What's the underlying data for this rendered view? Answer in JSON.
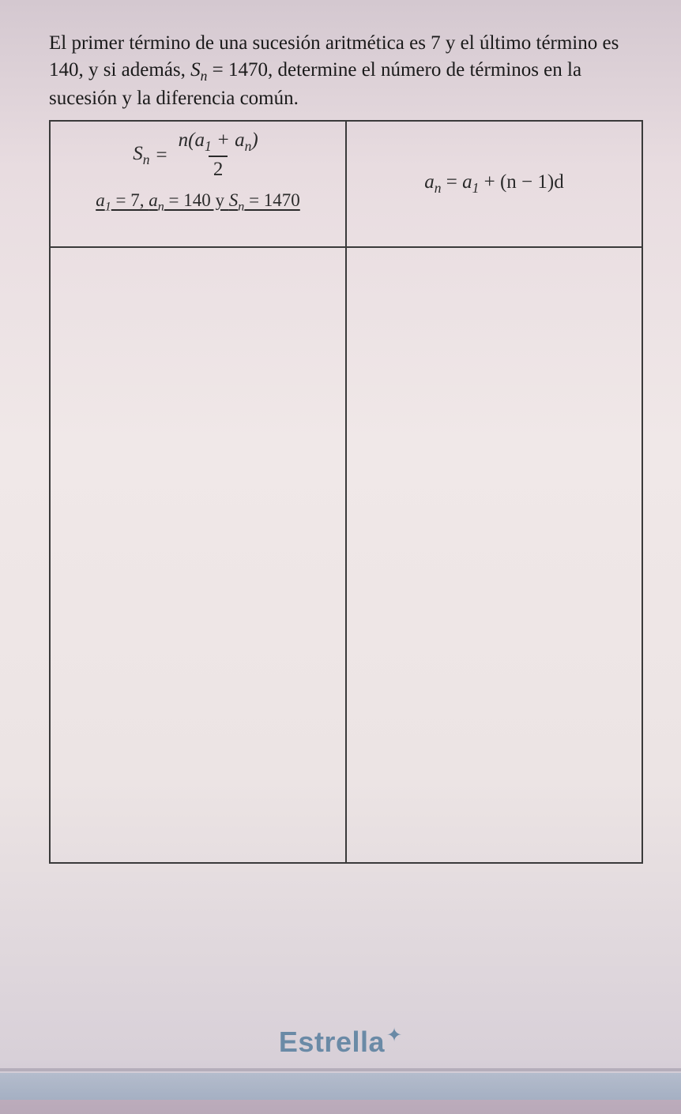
{
  "problem": {
    "text_before_sn": "El primer término de una sucesión aritmética es 7 y el último término es 140, y si además, ",
    "sn_var": "S",
    "sn_sub": "n",
    "sn_eq": " = 1470, determine el número de términos en la sucesión y la diferencia común."
  },
  "left_formula": {
    "lhs_var": "S",
    "lhs_sub": "n",
    "equals": "=",
    "num_text_a": "n(a",
    "num_sub1": "1",
    "num_text_b": " + a",
    "num_sub2": "n",
    "num_text_c": ")",
    "den": "2"
  },
  "given": {
    "a1_var": "a",
    "a1_sub": "1",
    "a1_val": " = 7, ",
    "an_var": "a",
    "an_sub": "n",
    "an_val": " = 140 y ",
    "sn_var": "S",
    "sn_sub": "n",
    "sn_val": " = 1470"
  },
  "right_formula": {
    "lhs_var": "a",
    "lhs_sub": "n",
    "equals": " = ",
    "rhs_a": "a",
    "rhs_a_sub": "1",
    "rhs_tail": " + (n − 1)d"
  },
  "brand": {
    "name": "Estrella",
    "star": "✦"
  }
}
